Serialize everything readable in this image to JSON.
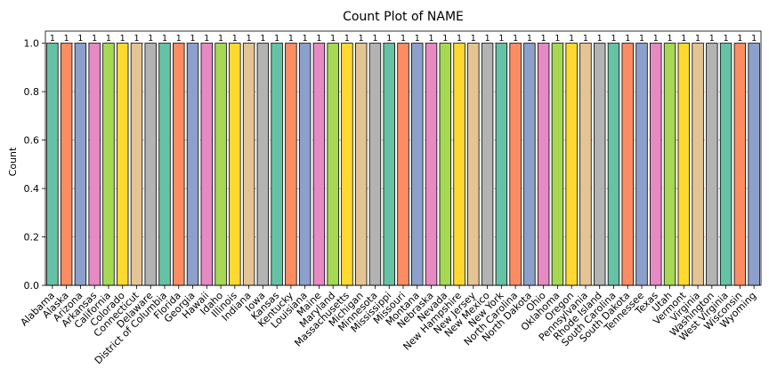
{
  "chart_data": {
    "type": "bar",
    "title": "Count Plot of NAME",
    "xlabel": "",
    "ylabel": "Count",
    "ylim": [
      0,
      1.05
    ],
    "yticks": [
      "0.0",
      "0.2",
      "0.4",
      "0.6",
      "0.8",
      "1.0"
    ],
    "grid": "y-dashed",
    "categories": [
      "Alabama",
      "Alaska",
      "Arizona",
      "Arkansas",
      "California",
      "Colorado",
      "Connecticut",
      "Delaware",
      "District of Columbia",
      "Florida",
      "Georgia",
      "Hawaii",
      "Idaho",
      "Illinois",
      "Indiana",
      "Iowa",
      "Kansas",
      "Kentucky",
      "Louisiana",
      "Maine",
      "Maryland",
      "Massachusetts",
      "Michigan",
      "Minnesota",
      "Mississippi",
      "Missouri",
      "Montana",
      "Nebraska",
      "Nevada",
      "New Hampshire",
      "New Jersey",
      "New Mexico",
      "New York",
      "North Carolina",
      "North Dakota",
      "Ohio",
      "Oklahoma",
      "Oregon",
      "Pennsylvania",
      "Rhode Island",
      "South Carolina",
      "South Dakota",
      "Tennessee",
      "Texas",
      "Utah",
      "Vermont",
      "Virginia",
      "Washington",
      "West Virginia",
      "Wisconsin",
      "Wyoming"
    ],
    "values": [
      1,
      1,
      1,
      1,
      1,
      1,
      1,
      1,
      1,
      1,
      1,
      1,
      1,
      1,
      1,
      1,
      1,
      1,
      1,
      1,
      1,
      1,
      1,
      1,
      1,
      1,
      1,
      1,
      1,
      1,
      1,
      1,
      1,
      1,
      1,
      1,
      1,
      1,
      1,
      1,
      1,
      1,
      1,
      1,
      1,
      1,
      1,
      1,
      1,
      1,
      1
    ],
    "data_labels": [
      "1",
      "1",
      "1",
      "1",
      "1",
      "1",
      "1",
      "1",
      "1",
      "1",
      "1",
      "1",
      "1",
      "1",
      "1",
      "1",
      "1",
      "1",
      "1",
      "1",
      "1",
      "1",
      "1",
      "1",
      "1",
      "1",
      "1",
      "1",
      "1",
      "1",
      "1",
      "1",
      "1",
      "1",
      "1",
      "1",
      "1",
      "1",
      "1",
      "1",
      "1",
      "1",
      "1",
      "1",
      "1",
      "1",
      "1",
      "1",
      "1",
      "1",
      "1"
    ],
    "palette": [
      "#66c2a5",
      "#fc8d62",
      "#8da0cb",
      "#e78ac3",
      "#a6d854",
      "#ffd92f",
      "#e5c494",
      "#b3b3b3"
    ]
  }
}
